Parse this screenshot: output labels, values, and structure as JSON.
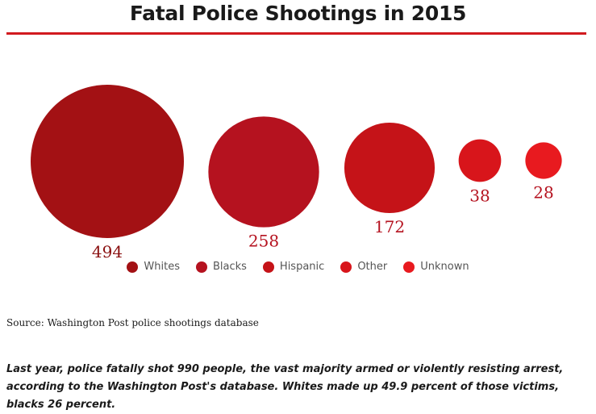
{
  "title": "Fatal Police Shootings in 2015",
  "source": "Source: Washington Post police shootings database",
  "caption": "Last year, police fatally shot 990 people, the vast majority armed or violently resisting arrest, according to the Washington Post's database. Whites made up 49.9 percent of those victims, blacks 26 percent.",
  "chart_data": {
    "type": "bubble",
    "title": "Fatal Police Shootings in 2015",
    "categories": [
      "Whites",
      "Blacks",
      "Hispanic",
      "Other",
      "Unknown"
    ],
    "values": [
      494,
      258,
      172,
      38,
      28
    ],
    "colors": [
      "#a31114",
      "#b5121f",
      "#c51318",
      "#d8151b",
      "#e81a1f"
    ],
    "legend_position": "bottom-center",
    "grid": false
  }
}
